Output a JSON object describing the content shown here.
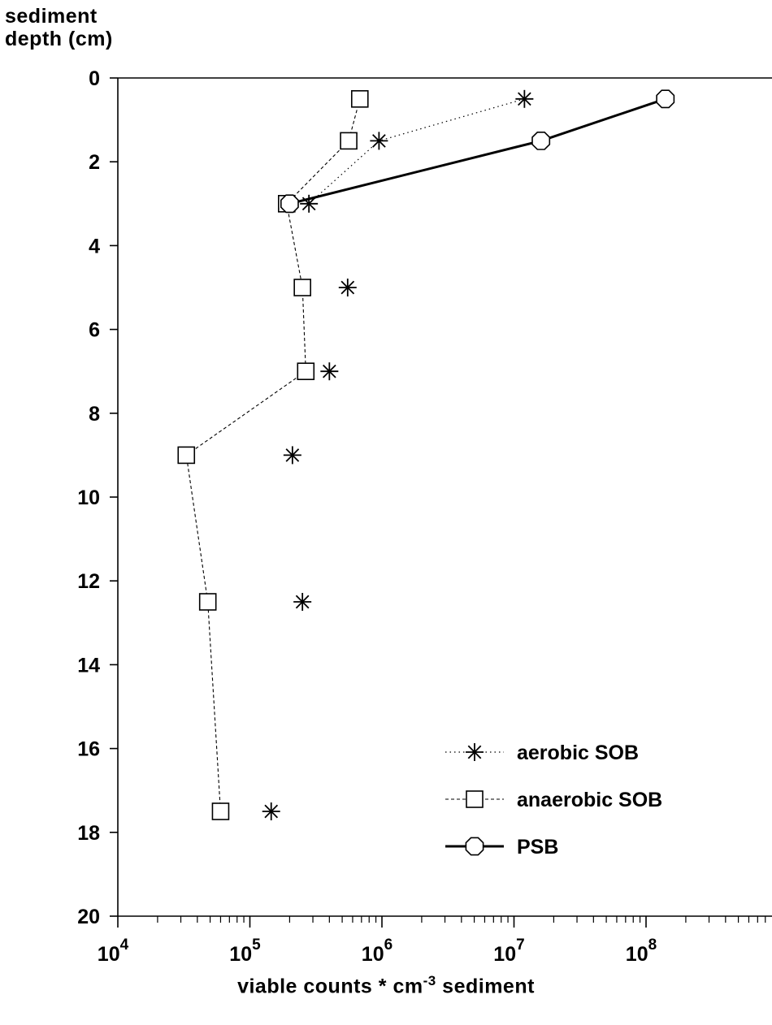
{
  "chart_data": {
    "type": "scatter",
    "title": "",
    "ylabel_lines": [
      "sediment",
      "depth (cm)"
    ],
    "xlabel": {
      "prefix": "viable counts * cm",
      "exponent": "-3",
      "suffix": " sediment"
    },
    "xscale": "log",
    "xlim": [
      10000,
      1000000000
    ],
    "ylim": [
      0,
      20
    ],
    "y_inverted": true,
    "yticks": [
      0,
      2,
      4,
      6,
      8,
      10,
      12,
      14,
      16,
      18,
      20
    ],
    "xtick_labels": [
      {
        "base": "10",
        "exp": "4",
        "value": 10000
      },
      {
        "base": "10",
        "exp": "5",
        "value": 100000
      },
      {
        "base": "10",
        "exp": "6",
        "value": 1000000
      },
      {
        "base": "10",
        "exp": "7",
        "value": 10000000
      },
      {
        "base": "10",
        "exp": "8",
        "value": 100000000
      }
    ],
    "grid": false,
    "legend_position": "bottom-right",
    "series": [
      {
        "name": "aerobic SOB",
        "marker": "asterisk",
        "line": "dotted",
        "points": [
          {
            "x": 12000000,
            "y": 0.5
          },
          {
            "x": 950000,
            "y": 1.5
          },
          {
            "x": 280000,
            "y": 3.0
          },
          {
            "x": 550000,
            "y": 5.0
          },
          {
            "x": 400000,
            "y": 7.0
          },
          {
            "x": 210000,
            "y": 9.0
          },
          {
            "x": 250000,
            "y": 12.5
          },
          {
            "x": 145000,
            "y": 17.5
          }
        ]
      },
      {
        "name": "anaerobic SOB",
        "marker": "square",
        "line": "dashed",
        "points": [
          {
            "x": 680000,
            "y": 0.5
          },
          {
            "x": 560000,
            "y": 1.5
          },
          {
            "x": 190000,
            "y": 3.0
          },
          {
            "x": 250000,
            "y": 5.0
          },
          {
            "x": 265000,
            "y": 7.0
          },
          {
            "x": 33000,
            "y": 9.0
          },
          {
            "x": 48000,
            "y": 12.5
          },
          {
            "x": 60000,
            "y": 17.5
          }
        ]
      },
      {
        "name": "PSB",
        "marker": "octagon",
        "line": "solid",
        "points": [
          {
            "x": 140000000,
            "y": 0.5
          },
          {
            "x": 16000000,
            "y": 1.5
          },
          {
            "x": 200000,
            "y": 3.0
          }
        ]
      }
    ]
  }
}
